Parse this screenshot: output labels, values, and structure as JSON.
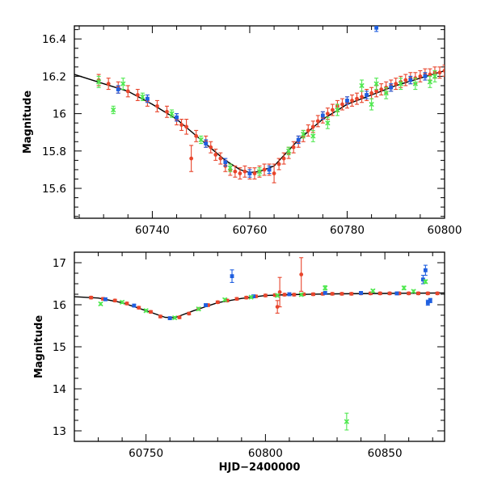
{
  "colors": {
    "red": "#e8452c",
    "blue": "#1f5fe0",
    "green": "#4fe84f",
    "curve": "#000000"
  },
  "chart_data": [
    {
      "type": "scatter",
      "xlabel": "",
      "ylabel": "Magnitude",
      "xlim": [
        60724,
        60800
      ],
      "ylim": [
        16.47,
        15.44
      ],
      "yaxis_inverted": true,
      "xticks": [
        "60740",
        "60760",
        "60780",
        "60800"
      ],
      "yticks": [
        "15.6",
        "15.8",
        "16",
        "16.2",
        "16.4"
      ],
      "xtick_values": [
        60740,
        60760,
        60780,
        60800
      ],
      "ytick_values": [
        15.6,
        15.8,
        16.0,
        16.2,
        16.4
      ],
      "series": [
        {
          "color": "red",
          "marker": "circle",
          "points": [
            [
              60729,
              16.18,
              0.03
            ],
            [
              60731,
              16.16,
              0.03
            ],
            [
              60733,
              16.14,
              0.03
            ],
            [
              60735,
              16.12,
              0.03
            ],
            [
              60737,
              16.1,
              0.03
            ],
            [
              60739,
              16.07,
              0.03
            ],
            [
              60741,
              16.04,
              0.03
            ],
            [
              60743,
              16.01,
              0.03
            ],
            [
              60745,
              15.97,
              0.03
            ],
            [
              60746,
              15.94,
              0.03
            ],
            [
              60747,
              15.93,
              0.04
            ],
            [
              60748,
              15.76,
              0.07
            ],
            [
              60749,
              15.88,
              0.03
            ],
            [
              60751,
              15.85,
              0.03
            ],
            [
              60752,
              15.82,
              0.03
            ],
            [
              60753,
              15.78,
              0.03
            ],
            [
              60754,
              15.76,
              0.03
            ],
            [
              60755,
              15.72,
              0.03
            ],
            [
              60756,
              15.7,
              0.03
            ],
            [
              60757,
              15.69,
              0.03
            ],
            [
              60758,
              15.68,
              0.03
            ],
            [
              60759,
              15.69,
              0.03
            ],
            [
              60760,
              15.68,
              0.03
            ],
            [
              60761,
              15.68,
              0.03
            ],
            [
              60762,
              15.69,
              0.03
            ],
            [
              60763,
              15.7,
              0.03
            ],
            [
              60764,
              15.7,
              0.03
            ],
            [
              60765,
              15.68,
              0.05
            ],
            [
              60766,
              15.73,
              0.03
            ],
            [
              60767,
              15.76,
              0.03
            ],
            [
              60768,
              15.79,
              0.03
            ],
            [
              60769,
              15.82,
              0.03
            ],
            [
              60770,
              15.85,
              0.03
            ],
            [
              60771,
              15.88,
              0.03
            ],
            [
              60772,
              15.91,
              0.03
            ],
            [
              60773,
              15.93,
              0.03
            ],
            [
              60774,
              15.96,
              0.03
            ],
            [
              60775,
              15.98,
              0.03
            ],
            [
              60776,
              16.0,
              0.03
            ],
            [
              60777,
              16.02,
              0.03
            ],
            [
              60778,
              16.04,
              0.03
            ],
            [
              60779,
              16.05,
              0.03
            ],
            [
              60780,
              16.06,
              0.03
            ],
            [
              60781,
              16.07,
              0.03
            ],
            [
              60782,
              16.08,
              0.03
            ],
            [
              60783,
              16.09,
              0.03
            ],
            [
              60784,
              16.1,
              0.03
            ],
            [
              60785,
              16.11,
              0.03
            ],
            [
              60786,
              16.12,
              0.03
            ],
            [
              60787,
              16.13,
              0.03
            ],
            [
              60788,
              16.14,
              0.03
            ],
            [
              60789,
              16.15,
              0.03
            ],
            [
              60790,
              16.16,
              0.03
            ],
            [
              60791,
              16.17,
              0.03
            ],
            [
              60792,
              16.18,
              0.03
            ],
            [
              60793,
              16.19,
              0.03
            ],
            [
              60794,
              16.19,
              0.03
            ],
            [
              60795,
              16.2,
              0.03
            ],
            [
              60796,
              16.21,
              0.03
            ],
            [
              60797,
              16.21,
              0.03
            ],
            [
              60798,
              16.22,
              0.03
            ],
            [
              60799,
              16.22,
              0.03
            ],
            [
              60800,
              16.23,
              0.03
            ]
          ]
        },
        {
          "color": "blue",
          "marker": "square",
          "points": [
            [
              60733,
              16.13,
              0.02
            ],
            [
              60739,
              16.08,
              0.02
            ],
            [
              60745,
              15.98,
              0.02
            ],
            [
              60751,
              15.84,
              0.02
            ],
            [
              60755,
              15.74,
              0.02
            ],
            [
              60760,
              15.68,
              0.02
            ],
            [
              60764,
              15.7,
              0.02
            ],
            [
              60770,
              15.86,
              0.02
            ],
            [
              60775,
              15.99,
              0.02
            ],
            [
              60780,
              16.07,
              0.02
            ],
            [
              60784,
              16.1,
              0.02
            ],
            [
              60786,
              16.46,
              0.02
            ],
            [
              60789,
              16.14,
              0.02
            ],
            [
              60793,
              16.18,
              0.02
            ],
            [
              60796,
              16.2,
              0.02
            ]
          ]
        },
        {
          "color": "green",
          "marker": "cross",
          "points": [
            [
              60729,
              16.17,
              0.03
            ],
            [
              60732,
              16.02,
              0.02
            ],
            [
              60734,
              16.16,
              0.03
            ],
            [
              60738,
              16.09,
              0.02
            ],
            [
              60744,
              16.0,
              0.02
            ],
            [
              60750,
              15.86,
              0.02
            ],
            [
              60756,
              15.71,
              0.02
            ],
            [
              60762,
              15.69,
              0.02
            ],
            [
              60768,
              15.8,
              0.02
            ],
            [
              60771,
              15.89,
              0.02
            ],
            [
              60773,
              15.88,
              0.03
            ],
            [
              60776,
              15.95,
              0.03
            ],
            [
              60778,
              16.02,
              0.03
            ],
            [
              60783,
              16.15,
              0.03
            ],
            [
              60785,
              16.05,
              0.03
            ],
            [
              60786,
              16.16,
              0.03
            ],
            [
              60788,
              16.11,
              0.03
            ],
            [
              60791,
              16.16,
              0.03
            ],
            [
              60794,
              16.16,
              0.03
            ],
            [
              60797,
              16.17,
              0.03
            ],
            [
              60798,
              16.2,
              0.03
            ]
          ]
        }
      ],
      "curve": [
        [
          60724,
          16.21
        ],
        [
          60730,
          16.16
        ],
        [
          60735,
          16.12
        ],
        [
          60740,
          16.05
        ],
        [
          60745,
          15.97
        ],
        [
          60750,
          15.86
        ],
        [
          60755,
          15.75
        ],
        [
          60758,
          15.7
        ],
        [
          60760,
          15.685
        ],
        [
          60762,
          15.69
        ],
        [
          60765,
          15.72
        ],
        [
          60770,
          15.86
        ],
        [
          60775,
          15.97
        ],
        [
          60780,
          16.05
        ],
        [
          60785,
          16.1
        ],
        [
          60790,
          16.15
        ],
        [
          60795,
          16.19
        ],
        [
          60800,
          16.23
        ]
      ]
    },
    {
      "type": "scatter",
      "xlabel": "HJD−2400000",
      "ylabel": "Magnitude",
      "xlim": [
        60720,
        60875
      ],
      "ylim": [
        17.25,
        12.75
      ],
      "yaxis_inverted": true,
      "xticks": [
        "60750",
        "60800",
        "60850"
      ],
      "yticks": [
        "13",
        "14",
        "15",
        "16",
        "17"
      ],
      "xtick_values": [
        60750,
        60800,
        60850
      ],
      "ytick_values": [
        13,
        14,
        15,
        16,
        17
      ],
      "series": [
        {
          "color": "red",
          "marker": "circle",
          "points": [
            [
              60727,
              16.17,
              0.03
            ],
            [
              60732,
              16.14,
              0.03
            ],
            [
              60737,
              16.1,
              0.03
            ],
            [
              60742,
              16.03,
              0.03
            ],
            [
              60747,
              15.93,
              0.03
            ],
            [
              60752,
              15.83,
              0.03
            ],
            [
              60756,
              15.72,
              0.03
            ],
            [
              60760,
              15.68,
              0.03
            ],
            [
              60764,
              15.7,
              0.03
            ],
            [
              60768,
              15.79,
              0.03
            ],
            [
              60772,
              15.9,
              0.03
            ],
            [
              60776,
              15.99,
              0.03
            ],
            [
              60780,
              16.06,
              0.03
            ],
            [
              60784,
              16.1,
              0.03
            ],
            [
              60788,
              16.14,
              0.03
            ],
            [
              60792,
              16.17,
              0.03
            ],
            [
              60796,
              16.2,
              0.03
            ],
            [
              60800,
              16.22,
              0.03
            ],
            [
              60804,
              16.23,
              0.03
            ],
            [
              60805,
              15.95,
              0.15
            ],
            [
              60806,
              16.3,
              0.35
            ],
            [
              60808,
              16.24,
              0.03
            ],
            [
              60812,
              16.24,
              0.03
            ],
            [
              60815,
              16.72,
              0.4
            ],
            [
              60816,
              16.25,
              0.03
            ],
            [
              60820,
              16.25,
              0.03
            ],
            [
              60824,
              16.26,
              0.03
            ],
            [
              60828,
              16.26,
              0.03
            ],
            [
              60832,
              16.26,
              0.03
            ],
            [
              60836,
              16.26,
              0.03
            ],
            [
              60840,
              16.27,
              0.03
            ],
            [
              60844,
              16.27,
              0.03
            ],
            [
              60848,
              16.27,
              0.03
            ],
            [
              60852,
              16.27,
              0.03
            ],
            [
              60856,
              16.27,
              0.03
            ],
            [
              60860,
              16.27,
              0.03
            ],
            [
              60864,
              16.27,
              0.03
            ],
            [
              60868,
              16.27,
              0.03
            ],
            [
              60872,
              16.27,
              0.03
            ]
          ]
        },
        {
          "color": "blue",
          "marker": "square",
          "points": [
            [
              60733,
              16.13,
              0.03
            ],
            [
              60745,
              15.98,
              0.03
            ],
            [
              60760,
              15.68,
              0.03
            ],
            [
              60775,
              15.99,
              0.03
            ],
            [
              60786,
              16.68,
              0.15
            ],
            [
              60795,
              16.2,
              0.03
            ],
            [
              60810,
              16.25,
              0.03
            ],
            [
              60825,
              16.28,
              0.03
            ],
            [
              60840,
              16.28,
              0.03
            ],
            [
              60855,
              16.27,
              0.03
            ],
            [
              60866,
              16.6,
              0.1
            ],
            [
              60867,
              16.82,
              0.12
            ],
            [
              60868,
              16.05,
              0.06
            ],
            [
              60869,
              16.1,
              0.05
            ]
          ]
        },
        {
          "color": "green",
          "marker": "cross",
          "points": [
            [
              60731,
              16.02,
              0.03
            ],
            [
              60740,
              16.06,
              0.03
            ],
            [
              60750,
              15.86,
              0.03
            ],
            [
              60762,
              15.69,
              0.03
            ],
            [
              60772,
              15.9,
              0.03
            ],
            [
              60783,
              16.12,
              0.03
            ],
            [
              60794,
              16.18,
              0.03
            ],
            [
              60805,
              16.22,
              0.03
            ],
            [
              60815,
              16.24,
              0.03
            ],
            [
              60825,
              16.4,
              0.05
            ],
            [
              60834,
              13.22,
              0.2
            ],
            [
              60845,
              16.33,
              0.03
            ],
            [
              60858,
              16.4,
              0.04
            ],
            [
              60862,
              16.32,
              0.03
            ],
            [
              60867,
              16.55,
              0.04
            ]
          ]
        }
      ],
      "curve": [
        [
          60720,
          16.19
        ],
        [
          60730,
          16.16
        ],
        [
          60740,
          16.05
        ],
        [
          60750,
          15.86
        ],
        [
          60758,
          15.7
        ],
        [
          60762,
          15.69
        ],
        [
          60770,
          15.86
        ],
        [
          60780,
          16.05
        ],
        [
          60790,
          16.15
        ],
        [
          60800,
          16.22
        ],
        [
          60810,
          16.24
        ],
        [
          60830,
          16.26
        ],
        [
          60850,
          16.27
        ],
        [
          60875,
          16.28
        ]
      ]
    }
  ]
}
